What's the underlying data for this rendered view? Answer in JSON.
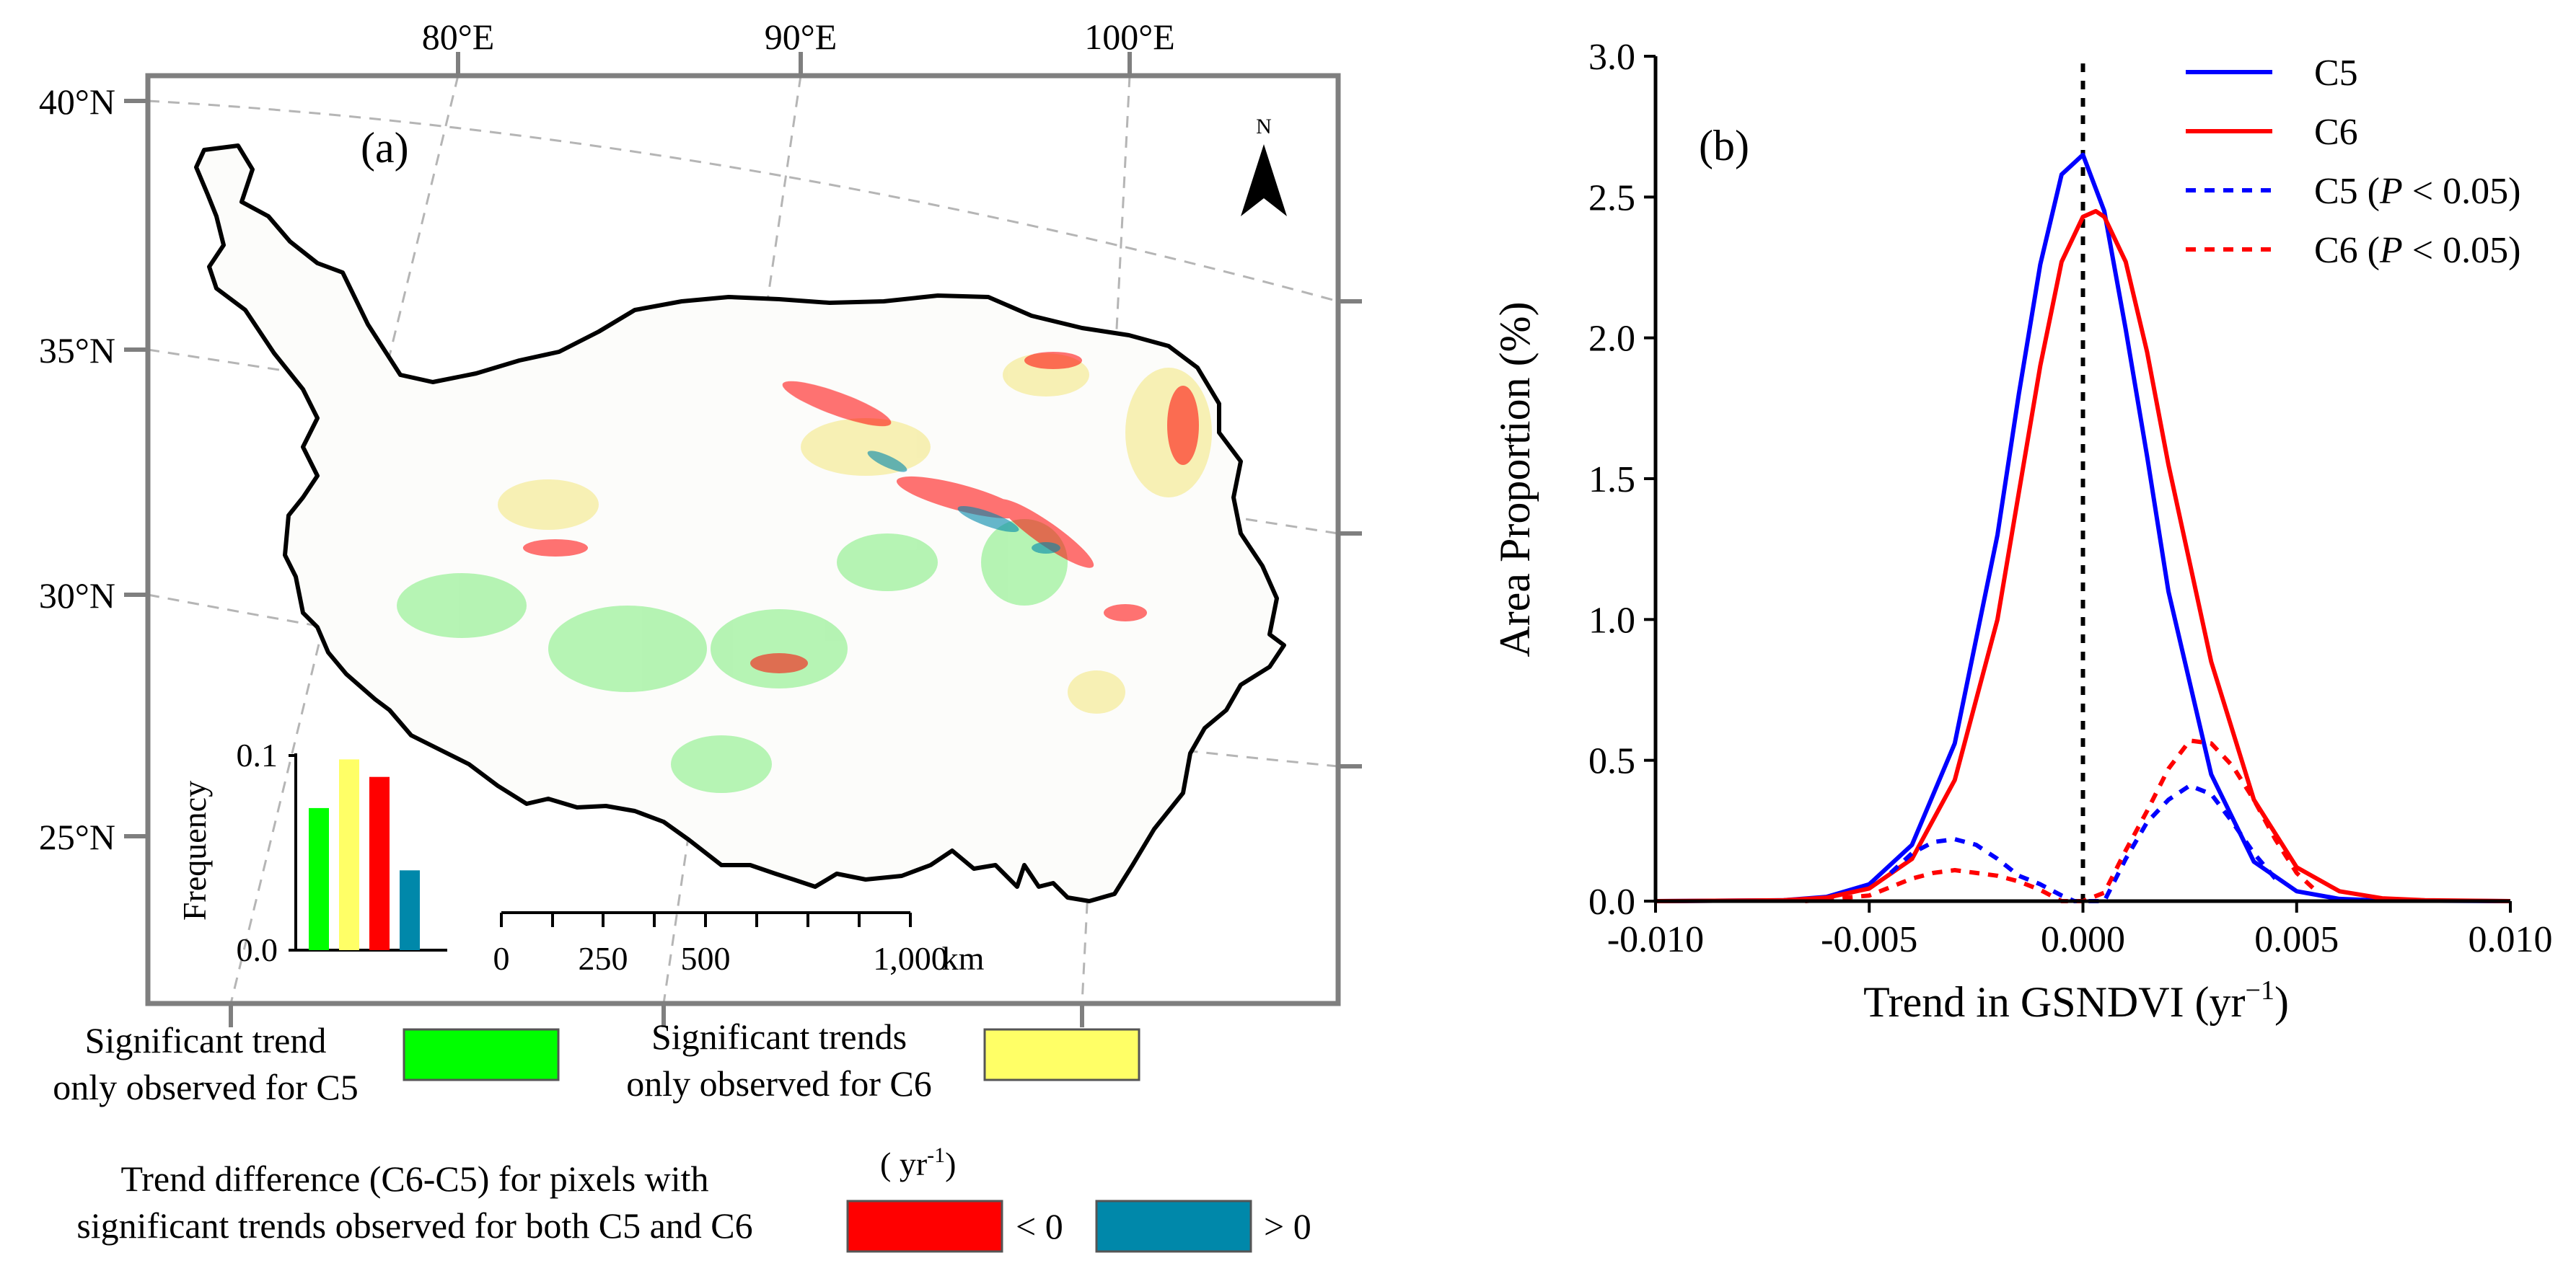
{
  "panel_a": {
    "label": "(a)",
    "lon_labels": [
      "80°E",
      "90°E",
      "100°E"
    ],
    "lat_labels": [
      "40°N",
      "35°N",
      "30°N",
      "25°N"
    ],
    "north_arrow": "N",
    "scale_bar": {
      "ticks": [
        "0",
        "250",
        "500",
        "1,000"
      ],
      "unit": "km"
    },
    "inset": {
      "ylabel": "Frequency",
      "ytick_labels": [
        "0.0",
        "0.1"
      ],
      "ylim": [
        0,
        0.1
      ],
      "bars": [
        {
          "value": 0.073,
          "color": "#00ff00"
        },
        {
          "value": 0.098,
          "color": "#ffff66"
        },
        {
          "value": 0.089,
          "color": "#ff0000"
        },
        {
          "value": 0.041,
          "color": "#0088aa"
        }
      ]
    },
    "legend": {
      "c5_only_line1": "Significant trend",
      "c5_only_line2": "only observed for C5",
      "c5_only_color": "#00ff00",
      "c6_only_line1": "Significant trends",
      "c6_only_line2": "only observed for C6",
      "c6_only_color": "#ffff66",
      "diff_line1": "Trend difference (C6-C5) for pixels with",
      "diff_line2": "significant trends observed for both C5 and C6",
      "diff_unit": "( yr",
      "diff_unit_sup": "-1",
      "neg_label": "< 0",
      "neg_color": "#ff0000",
      "pos_label": "> 0",
      "pos_color": "#0088aa"
    }
  },
  "chart_data": {
    "type": "line",
    "panel_label": "(b)",
    "xlabel": "Trend in GSNDVI (yr",
    "xlabel_sup": "−1",
    "ylabel": "Area Proportion (%)",
    "xlim": [
      -0.01,
      0.01
    ],
    "ylim": [
      0,
      3.0
    ],
    "x_tick_labels": [
      "-0.010",
      "-0.005",
      "0.000",
      "0.005",
      "0.010"
    ],
    "y_tick_labels": [
      "0.0",
      "0.5",
      "1.0",
      "1.5",
      "2.0",
      "2.5",
      "3.0"
    ],
    "vertical_reference_x": 0.0,
    "legend": [
      {
        "label": "C5",
        "suffix": "",
        "style": "solid",
        "color": "#0000ff"
      },
      {
        "label": "C6",
        "suffix": "",
        "style": "solid",
        "color": "#ff0000"
      },
      {
        "label": "C5 (",
        "italic": "P",
        "suffix": " < 0.05)",
        "style": "dashed",
        "color": "#0000ff"
      },
      {
        "label": "C6 (",
        "italic": "P",
        "suffix": " < 0.05)",
        "style": "dashed",
        "color": "#ff0000"
      }
    ],
    "series": [
      {
        "name": "C5",
        "style": "solid",
        "color": "#0000ff",
        "x": [
          -0.01,
          -0.007,
          -0.006,
          -0.005,
          -0.004,
          -0.003,
          -0.002,
          -0.0015,
          -0.001,
          -0.0005,
          0.0,
          0.0005,
          0.001,
          0.0015,
          0.002,
          0.003,
          0.004,
          0.005,
          0.006,
          0.007,
          0.01
        ],
        "y": [
          0.0,
          0.003,
          0.015,
          0.06,
          0.2,
          0.56,
          1.3,
          1.8,
          2.26,
          2.58,
          2.65,
          2.45,
          2.03,
          1.58,
          1.1,
          0.45,
          0.14,
          0.035,
          0.008,
          0.002,
          0.0
        ]
      },
      {
        "name": "C6",
        "style": "solid",
        "color": "#ff0000",
        "x": [
          -0.01,
          -0.007,
          -0.006,
          -0.005,
          -0.004,
          -0.003,
          -0.002,
          -0.0015,
          -0.001,
          -0.0005,
          0.0,
          0.0003,
          0.0005,
          0.001,
          0.0015,
          0.002,
          0.003,
          0.004,
          0.005,
          0.006,
          0.007,
          0.008,
          0.01
        ],
        "y": [
          0.0,
          0.003,
          0.012,
          0.045,
          0.15,
          0.43,
          1.0,
          1.45,
          1.9,
          2.27,
          2.43,
          2.45,
          2.43,
          2.27,
          1.95,
          1.55,
          0.85,
          0.36,
          0.12,
          0.035,
          0.01,
          0.003,
          0.0
        ]
      },
      {
        "name": "C5 (P < 0.05)",
        "style": "dashed",
        "color": "#0000ff",
        "x": [
          -0.0045,
          -0.004,
          -0.0035,
          -0.003,
          -0.0025,
          -0.002,
          -0.0015,
          -0.001,
          -0.0005,
          -0.0002,
          0.0005,
          0.001,
          0.0015,
          0.002,
          0.0025,
          0.003,
          0.0035,
          0.004,
          0.0045
        ],
        "y": [
          0.1,
          0.17,
          0.21,
          0.22,
          0.2,
          0.15,
          0.09,
          0.06,
          0.02,
          0.0,
          0.0,
          0.15,
          0.28,
          0.36,
          0.41,
          0.38,
          0.28,
          0.17,
          0.08
        ]
      },
      {
        "name": "C6 (P < 0.05)",
        "style": "dashed",
        "color": "#ff0000",
        "x": [
          -0.0065,
          -0.005,
          -0.0045,
          -0.004,
          -0.0035,
          -0.003,
          -0.0025,
          -0.002,
          -0.0015,
          -0.001,
          -0.0005,
          0.0,
          0.0005,
          0.001,
          0.0015,
          0.002,
          0.0025,
          0.003,
          0.0035,
          0.004,
          0.0045,
          0.005,
          0.0055
        ],
        "y": [
          0.0,
          0.02,
          0.05,
          0.08,
          0.1,
          0.11,
          0.1,
          0.09,
          0.07,
          0.04,
          0.0,
          0.0,
          0.03,
          0.18,
          0.32,
          0.47,
          0.57,
          0.56,
          0.48,
          0.36,
          0.22,
          0.1,
          0.03
        ]
      }
    ]
  }
}
